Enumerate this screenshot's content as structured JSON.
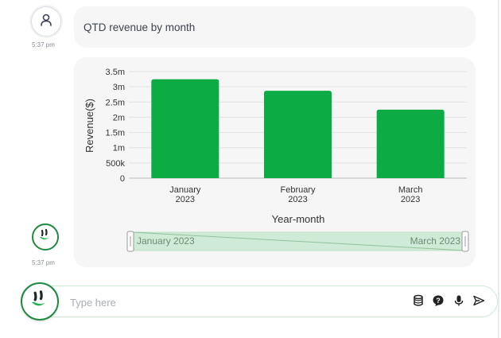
{
  "messages": {
    "user": {
      "text": "QTD revenue by month",
      "time": "5:37 pm"
    },
    "bot": {
      "time": "5:37 pm"
    }
  },
  "input": {
    "placeholder": "Type here"
  },
  "icons": {
    "user_avatar": "user-icon",
    "bot_avatar": "smiley-logo-icon",
    "tools": [
      "database-icon",
      "help-icon",
      "microphone-icon",
      "send-icon"
    ]
  },
  "colors": {
    "bar": "#0dab44",
    "bubble": "#f6f6f6",
    "brand": "#1e8a3e"
  },
  "chart_data": {
    "type": "bar",
    "categories": [
      [
        "January",
        "2023"
      ],
      [
        "February",
        "2023"
      ],
      [
        "March",
        "2023"
      ]
    ],
    "values": [
      3250000,
      2870000,
      2250000
    ],
    "xlabel": "Year-month",
    "ylabel": "Revenue($)",
    "ylim": [
      0,
      3500000
    ],
    "yticks": [
      0,
      500000,
      1000000,
      1500000,
      2000000,
      2500000,
      3000000,
      3500000
    ],
    "ytick_labels": [
      "0",
      "500k",
      "1m",
      "1.5m",
      "2m",
      "2.5m",
      "3m",
      "3.5m"
    ],
    "grid": true,
    "brush": {
      "start_label": "January 2023",
      "end_label": "March 2023"
    }
  }
}
